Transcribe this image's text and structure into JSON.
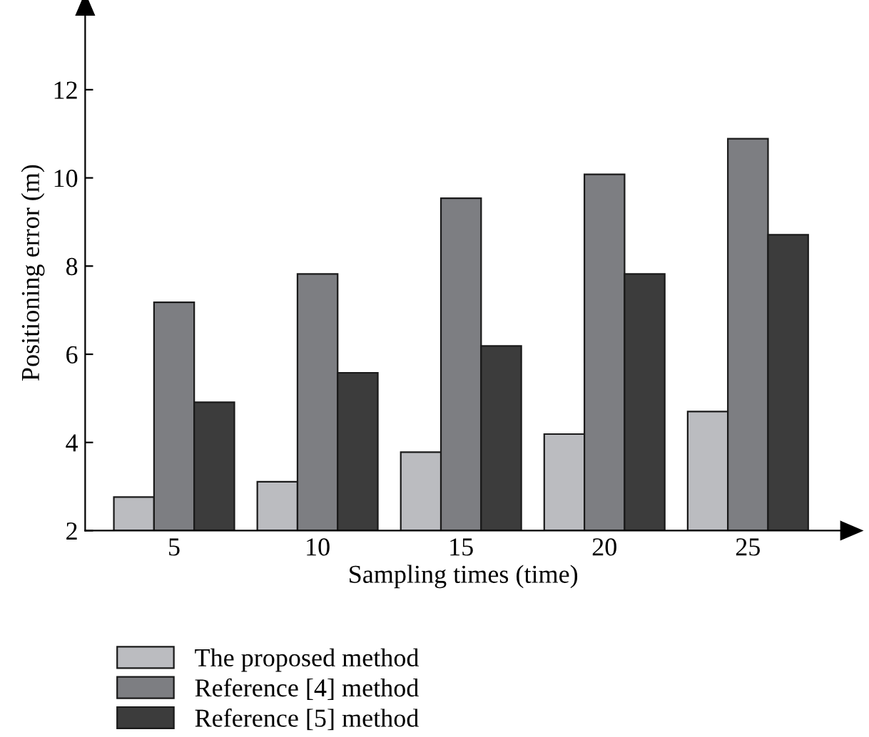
{
  "chart_data": {
    "type": "bar",
    "xlabel": "Sampling times (time)",
    "ylabel": "Positioning error (m)",
    "categories": [
      "5",
      "10",
      "15",
      "20",
      "25"
    ],
    "series": [
      {
        "name": "The proposed method",
        "color": "#bbbcc0",
        "values": [
          2.76,
          3.11,
          3.78,
          4.19,
          4.7
        ]
      },
      {
        "name": "Reference [4] method",
        "color": "#7d7e82",
        "values": [
          7.18,
          7.82,
          9.54,
          10.08,
          10.89
        ]
      },
      {
        "name": "Reference [5] method",
        "color": "#3c3c3c",
        "values": [
          4.91,
          5.58,
          6.19,
          7.82,
          8.71
        ]
      }
    ],
    "ylim": [
      2,
      13.7
    ],
    "yticks": [
      2,
      4,
      6,
      8,
      10,
      12
    ],
    "grid": false,
    "legend": "bottom left"
  }
}
